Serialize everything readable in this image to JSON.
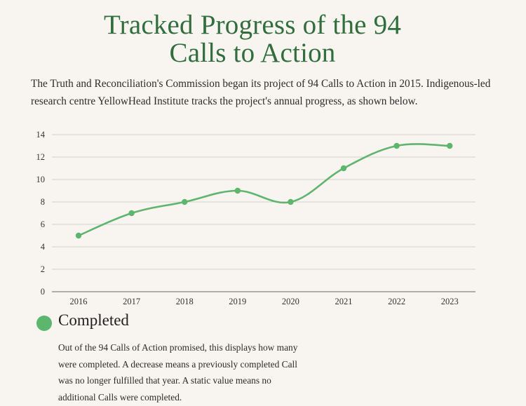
{
  "header": {
    "title_line1": "Tracked Progress of the 94",
    "title_line2": "Calls to Action"
  },
  "intro": {
    "text": "The Truth and Reconciliation's Commission began its project of 94 Calls to Action in 2015. Indigenous-led research centre YellowHead Institute tracks the project's annual progress, as shown below."
  },
  "legend": {
    "label": "Completed",
    "description": "Out of the 94 Calls of Action promised, this displays how many were completed. A decrease means a previously completed Call was no longer fulfilled that year. A static value means no additional Calls were completed.",
    "color": "#5cb66e"
  },
  "chart_data": {
    "type": "line",
    "title": "Tracked Progress of the 94 Calls to Action",
    "xlabel": "",
    "ylabel": "",
    "categories": [
      "2016",
      "2017",
      "2018",
      "2019",
      "2020",
      "2021",
      "2022",
      "2023"
    ],
    "series": [
      {
        "name": "Completed",
        "values": [
          5,
          7,
          8,
          9,
          8,
          11,
          13,
          13
        ],
        "color": "#5cb66e"
      }
    ],
    "ylim": [
      0,
      14
    ],
    "yticks": [
      0,
      2,
      4,
      6,
      8,
      10,
      12,
      14
    ],
    "grid": true,
    "smooth": true,
    "legend_position": "bottom-left",
    "colors": {
      "grid": "#d6d2cc",
      "axis": "#9a9590"
    }
  }
}
